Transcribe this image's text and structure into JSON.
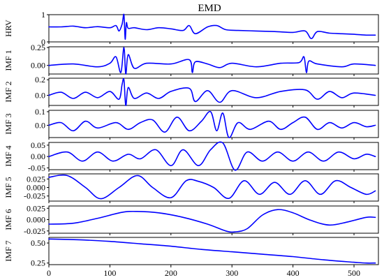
{
  "chart_data": {
    "type": "line",
    "title": "EMD",
    "line_color": "#0000ff",
    "x_range": [
      0,
      540
    ],
    "x_ticks": [
      0,
      100,
      200,
      300,
      400,
      500
    ],
    "panels": [
      {
        "name": "HRV",
        "ylim": [
          0,
          1
        ],
        "yticks": [
          {
            "v": 0,
            "label": "0"
          },
          {
            "v": 1,
            "label": "1"
          }
        ],
        "x": [
          0,
          20,
          40,
          60,
          80,
          100,
          110,
          115,
          120,
          123,
          125,
          127,
          130,
          140,
          160,
          180,
          200,
          220,
          230,
          240,
          260,
          275,
          290,
          310,
          340,
          370,
          400,
          420,
          430,
          440,
          460,
          480,
          500,
          520,
          535
        ],
        "y": [
          0.55,
          0.55,
          0.58,
          0.52,
          0.56,
          0.52,
          0.6,
          0.4,
          0.65,
          1.0,
          0.1,
          0.7,
          0.5,
          0.52,
          0.45,
          0.52,
          0.48,
          0.42,
          0.6,
          0.3,
          0.55,
          0.6,
          0.45,
          0.42,
          0.4,
          0.38,
          0.35,
          0.4,
          0.12,
          0.38,
          0.32,
          0.3,
          0.28,
          0.25,
          0.25
        ]
      },
      {
        "name": "IMF 1",
        "ylim": [
          -0.12,
          0.26
        ],
        "yticks": [
          {
            "v": 0.25,
            "label": "0.25"
          },
          {
            "v": 0,
            "label": "0.00"
          }
        ],
        "x": [
          0,
          40,
          80,
          100,
          110,
          118,
          123,
          126,
          130,
          140,
          160,
          200,
          230,
          235,
          240,
          260,
          280,
          300,
          340,
          380,
          410,
          418,
          422,
          426,
          440,
          480,
          500,
          535
        ],
        "y": [
          0.0,
          0.02,
          -0.02,
          0.03,
          0.12,
          -0.1,
          0.25,
          -0.12,
          0.15,
          -0.04,
          0.03,
          0.02,
          0.08,
          -0.1,
          0.05,
          0.02,
          -0.03,
          0.03,
          -0.02,
          0.03,
          0.04,
          0.12,
          -0.1,
          0.06,
          0.02,
          -0.02,
          0.02,
          0.0
        ]
      },
      {
        "name": "IMF 2",
        "ylim": [
          -0.13,
          0.22
        ],
        "yticks": [
          {
            "v": 0.2,
            "label": "0.2"
          },
          {
            "v": 0,
            "label": "0.0"
          }
        ],
        "x": [
          0,
          20,
          40,
          60,
          80,
          100,
          115,
          120,
          123,
          126,
          130,
          140,
          160,
          180,
          200,
          230,
          240,
          260,
          280,
          300,
          340,
          380,
          420,
          440,
          460,
          480,
          500,
          535
        ],
        "y": [
          0.0,
          0.04,
          -0.04,
          0.04,
          -0.03,
          0.05,
          -0.05,
          0.14,
          0.2,
          -0.13,
          0.1,
          -0.04,
          0.03,
          -0.04,
          0.05,
          0.09,
          -0.08,
          0.06,
          -0.09,
          0.06,
          -0.03,
          0.05,
          0.07,
          -0.05,
          0.05,
          -0.03,
          0.03,
          0.0
        ]
      },
      {
        "name": "IMF 3",
        "ylim": [
          -0.09,
          0.11
        ],
        "yticks": [
          {
            "v": 0.1,
            "label": "0.1"
          },
          {
            "v": 0,
            "label": "0.0"
          }
        ],
        "x": [
          0,
          20,
          40,
          60,
          80,
          110,
          130,
          150,
          170,
          190,
          210,
          230,
          250,
          265,
          275,
          285,
          295,
          310,
          330,
          360,
          380,
          400,
          420,
          440,
          460,
          480,
          500,
          520,
          535
        ],
        "y": [
          0.0,
          0.02,
          -0.04,
          0.03,
          -0.02,
          0.02,
          -0.03,
          0.02,
          0.04,
          -0.05,
          0.06,
          -0.04,
          0.03,
          0.1,
          -0.04,
          0.09,
          -0.09,
          0.02,
          -0.03,
          0.03,
          -0.03,
          0.02,
          0.06,
          -0.03,
          0.02,
          -0.02,
          0.02,
          -0.01,
          0.0
        ]
      },
      {
        "name": "IMF 4",
        "ylim": [
          -0.058,
          0.062
        ],
        "yticks": [
          {
            "v": 0.05,
            "label": "0.05"
          },
          {
            "v": 0,
            "label": "0.00"
          },
          {
            "v": -0.05,
            "label": "-0.05"
          }
        ],
        "x": [
          0,
          30,
          55,
          80,
          105,
          130,
          150,
          175,
          200,
          220,
          245,
          265,
          285,
          305,
          325,
          350,
          375,
          400,
          425,
          450,
          475,
          500,
          520,
          535
        ],
        "y": [
          0.0,
          0.02,
          -0.02,
          0.02,
          -0.02,
          0.01,
          -0.01,
          0.03,
          -0.04,
          0.03,
          -0.04,
          0.03,
          0.06,
          -0.06,
          0.02,
          -0.02,
          0.02,
          -0.02,
          0.02,
          -0.02,
          0.02,
          -0.01,
          0.01,
          0.0
        ]
      },
      {
        "name": "IMF 5",
        "ylim": [
          -0.04,
          0.04
        ],
        "yticks": [
          {
            "v": 0.025,
            "label": "0.025"
          },
          {
            "v": 0,
            "label": "0.000"
          },
          {
            "v": -0.025,
            "label": "-0.025"
          }
        ],
        "x": [
          0,
          30,
          60,
          85,
          115,
          145,
          170,
          200,
          225,
          245,
          270,
          295,
          320,
          345,
          370,
          395,
          420,
          445,
          470,
          495,
          520,
          535
        ],
        "y": [
          0.03,
          0.035,
          0.0,
          -0.033,
          0.0,
          0.035,
          0.0,
          -0.03,
          0.02,
          0.018,
          0.0,
          -0.032,
          0.02,
          -0.02,
          0.015,
          -0.02,
          0.02,
          -0.02,
          0.02,
          0.0,
          -0.02,
          -0.01
        ]
      },
      {
        "name": "IMF 6",
        "ylim": [
          -0.03,
          0.03
        ],
        "yticks": [
          {
            "v": 0.025,
            "label": "0.025"
          },
          {
            "v": 0,
            "label": "0.000"
          },
          {
            "v": -0.025,
            "label": "-0.025"
          }
        ],
        "x": [
          0,
          40,
          80,
          120,
          145,
          180,
          220,
          260,
          290,
          305,
          325,
          350,
          375,
          400,
          430,
          460,
          490,
          520,
          535
        ],
        "y": [
          -0.01,
          -0.008,
          0.003,
          0.016,
          0.018,
          0.015,
          0.005,
          -0.01,
          -0.025,
          -0.027,
          -0.02,
          0.01,
          0.022,
          0.015,
          -0.002,
          -0.012,
          -0.005,
          0.005,
          0.005
        ]
      },
      {
        "name": "IMF 7",
        "ylim": [
          0.23,
          0.57
        ],
        "yticks": [
          {
            "v": 0.5,
            "label": "0.50"
          },
          {
            "v": 0.25,
            "label": "0.25"
          }
        ],
        "x": [
          0,
          50,
          100,
          150,
          200,
          250,
          300,
          350,
          400,
          450,
          500,
          520,
          535
        ],
        "y": [
          0.55,
          0.54,
          0.52,
          0.49,
          0.46,
          0.42,
          0.39,
          0.36,
          0.33,
          0.29,
          0.26,
          0.25,
          0.25
        ]
      }
    ]
  }
}
